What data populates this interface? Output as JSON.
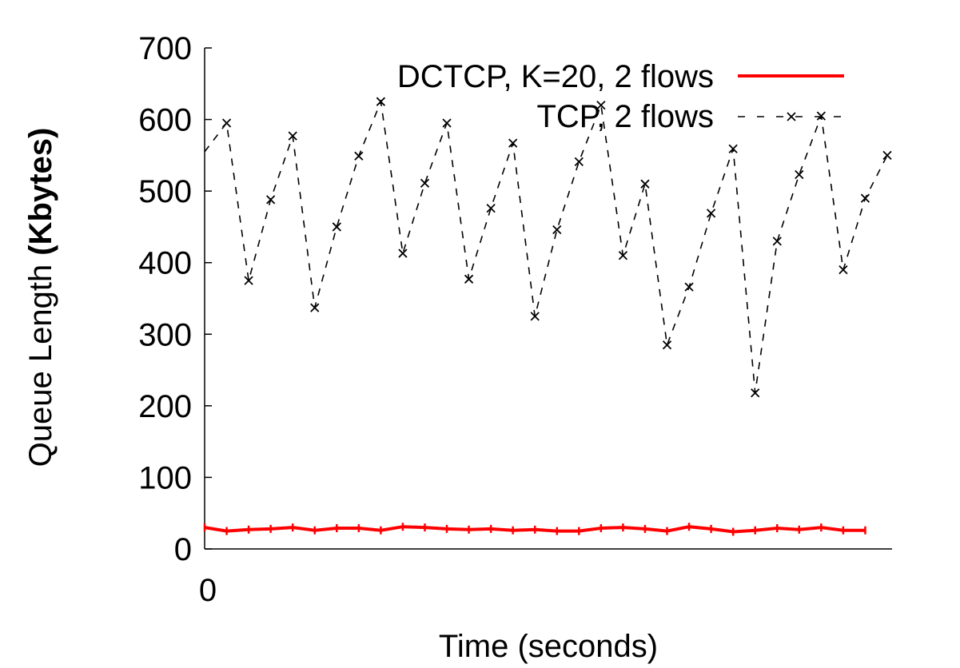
{
  "chart_data": {
    "type": "line",
    "title": "",
    "xlabel": "Time (seconds)",
    "ylabel_normal": "Queue Length ",
    "ylabel_bold": "(Kbytes)",
    "ylim": [
      0,
      700
    ],
    "yticks": [
      "0",
      "100",
      "200",
      "300",
      "400",
      "500",
      "600",
      "700"
    ],
    "xticks": [
      "0"
    ],
    "grid": false,
    "legend_position": "top-right",
    "series": [
      {
        "name": "DCTCP, K=20, 2 flows",
        "color": "#ff0000",
        "style": "solid",
        "marker": "plus",
        "values": [
          30,
          25,
          27,
          28,
          30,
          26,
          29,
          29,
          26,
          31,
          30,
          28,
          27,
          28,
          26,
          27,
          25,
          25,
          29,
          30,
          28,
          25,
          31,
          28,
          24,
          26,
          29,
          27,
          30,
          26,
          26
        ]
      },
      {
        "name": "TCP, 2 flows",
        "color": "#000000",
        "style": "dashed",
        "marker": "x",
        "values": [
          555,
          595,
          375,
          488,
          577,
          337,
          450,
          549,
          625,
          413,
          511,
          595,
          377,
          476,
          567,
          325,
          446,
          541,
          620,
          410,
          510,
          285,
          366,
          469,
          559,
          218,
          430,
          523,
          605,
          390,
          490,
          550
        ]
      }
    ]
  }
}
